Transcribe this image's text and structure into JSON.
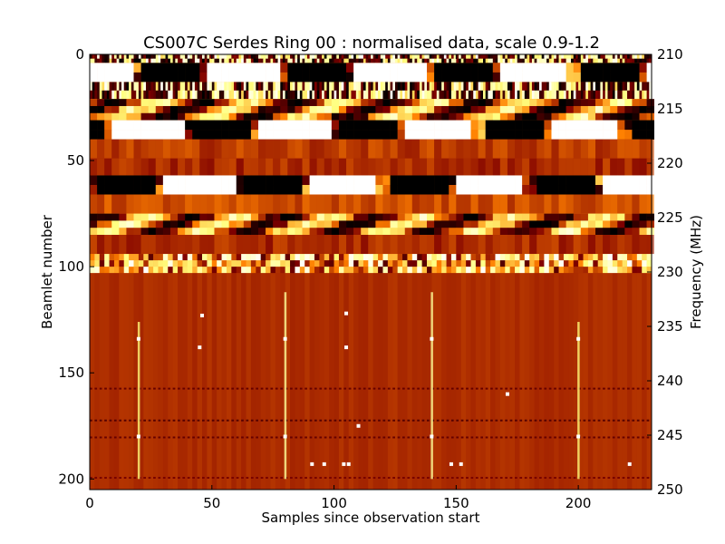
{
  "chart_data": {
    "type": "heatmap",
    "title": "CS007C Serdes Ring 00 : normalised data, scale 0.9-1.2",
    "xlabel": "Samples since observation start",
    "ylabel": "Beamlet number",
    "y2label": "Frequency (MHz)",
    "xlim": [
      0,
      230
    ],
    "ylim": [
      205,
      0
    ],
    "y2lim": [
      250,
      210
    ],
    "xticks": [
      0,
      50,
      100,
      150,
      200
    ],
    "yticks": [
      0,
      50,
      100,
      150,
      200
    ],
    "y2ticks": [
      210,
      215,
      220,
      225,
      230,
      235,
      240,
      245,
      250
    ],
    "color_scale": {
      "min": 0.9,
      "max": 1.2,
      "colormap": "afmhot",
      "low_color": "#000000",
      "mid_color": "#b04a00",
      "high_color": "#ffffff"
    },
    "grid": false,
    "bands": [
      {
        "beamlets": [
          0,
          4
        ],
        "pattern": "saturated-stripes",
        "mean": 1.05
      },
      {
        "beamlets": [
          4,
          13
        ],
        "pattern": "high-contrast-blocks",
        "mean": 1.05
      },
      {
        "beamlets": [
          13,
          21
        ],
        "pattern": "saturated-stripes",
        "mean": 1.05
      },
      {
        "beamlets": [
          21,
          31
        ],
        "pattern": "bright-wave",
        "mean": 1.08
      },
      {
        "beamlets": [
          31,
          40
        ],
        "pattern": "high-contrast-blocks",
        "mean": 1.04
      },
      {
        "beamlets": [
          40,
          49
        ],
        "pattern": "smooth",
        "mean": 1.01
      },
      {
        "beamlets": [
          49,
          57
        ],
        "pattern": "smooth",
        "mean": 1.0
      },
      {
        "beamlets": [
          57,
          66
        ],
        "pattern": "high-contrast-blocks",
        "mean": 1.05
      },
      {
        "beamlets": [
          66,
          75
        ],
        "pattern": "smooth",
        "mean": 1.02
      },
      {
        "beamlets": [
          75,
          85
        ],
        "pattern": "bright-wave",
        "mean": 1.07
      },
      {
        "beamlets": [
          85,
          94
        ],
        "pattern": "smooth",
        "mean": 1.0
      },
      {
        "beamlets": [
          94,
          103
        ],
        "pattern": "speckled",
        "mean": 1.03
      },
      {
        "beamlets": [
          103,
          205
        ],
        "pattern": "quiet",
        "mean": 1.0
      }
    ],
    "vertical_spikes": [
      {
        "sample": 20,
        "beamlets": [
          126,
          200
        ],
        "value": 1.12
      },
      {
        "sample": 80,
        "beamlets": [
          112,
          200
        ],
        "value": 1.14
      },
      {
        "sample": 140,
        "beamlets": [
          112,
          200
        ],
        "value": 1.14
      },
      {
        "sample": 200,
        "beamlets": [
          126,
          200
        ],
        "value": 1.12
      }
    ],
    "horizontal_lines": [
      {
        "beamlet": 157,
        "value": 0.96
      },
      {
        "beamlet": 172,
        "value": 0.95
      },
      {
        "beamlet": 180,
        "value": 0.96
      },
      {
        "beamlet": 199,
        "value": 0.97
      }
    ],
    "bright_pixels": [
      {
        "sample": 20,
        "beamlet": 134
      },
      {
        "sample": 20,
        "beamlet": 180
      },
      {
        "sample": 46,
        "beamlet": 123
      },
      {
        "sample": 45,
        "beamlet": 138
      },
      {
        "sample": 80,
        "beamlet": 134
      },
      {
        "sample": 80,
        "beamlet": 180
      },
      {
        "sample": 105,
        "beamlet": 122
      },
      {
        "sample": 105,
        "beamlet": 138
      },
      {
        "sample": 140,
        "beamlet": 134
      },
      {
        "sample": 140,
        "beamlet": 180
      },
      {
        "sample": 200,
        "beamlet": 134
      },
      {
        "sample": 200,
        "beamlet": 180
      },
      {
        "sample": 171,
        "beamlet": 160
      },
      {
        "sample": 110,
        "beamlet": 175
      },
      {
        "sample": 91,
        "beamlet": 193
      },
      {
        "sample": 96,
        "beamlet": 193
      },
      {
        "sample": 104,
        "beamlet": 193
      },
      {
        "sample": 106,
        "beamlet": 193
      },
      {
        "sample": 148,
        "beamlet": 193
      },
      {
        "sample": 152,
        "beamlet": 193
      },
      {
        "sample": 221,
        "beamlet": 193
      }
    ]
  }
}
